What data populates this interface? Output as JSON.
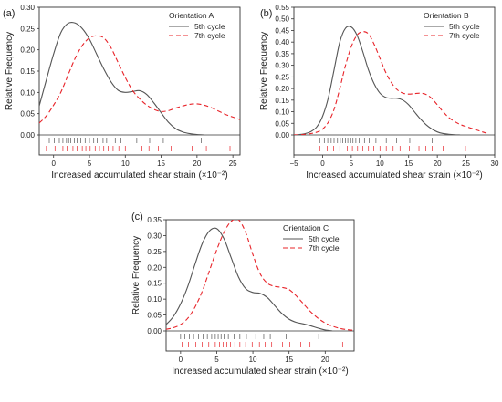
{
  "chart_data": [
    {
      "type": "line",
      "panel_label": "(a)",
      "legend_title": "Orientation A",
      "legend_placement": "top-right",
      "ylabel": "Relative Frequency",
      "xlabel": "Increased accumulated shear strain (×10⁻²)",
      "xlim": [
        -2,
        26
      ],
      "ylim": [
        0,
        0.3
      ],
      "x_ticks": [
        0,
        5,
        10,
        15,
        20,
        25
      ],
      "y_ticks": [
        0.0,
        0.05,
        0.1,
        0.15,
        0.2,
        0.25,
        0.3
      ],
      "x_tick_labels": [
        "0",
        "5",
        "10",
        "15",
        "20",
        "25"
      ],
      "y_tick_labels": [
        "0.00",
        "0.05",
        "0.10",
        "0.15",
        "0.20",
        "0.25",
        "0.30"
      ],
      "series": [
        {
          "name": "5th cycle",
          "color": "#555555",
          "dash": "solid",
          "x": [
            -2,
            -1,
            0,
            1,
            2,
            3,
            4,
            5,
            6,
            7,
            8,
            9,
            10,
            11,
            12,
            13,
            14,
            15,
            16,
            17,
            18,
            19,
            20,
            21
          ],
          "y": [
            0.068,
            0.13,
            0.19,
            0.24,
            0.262,
            0.263,
            0.25,
            0.225,
            0.19,
            0.155,
            0.125,
            0.105,
            0.1,
            0.102,
            0.104,
            0.095,
            0.075,
            0.052,
            0.03,
            0.015,
            0.007,
            0.003,
            0.001,
            0.0
          ]
        },
        {
          "name": "7th cycle",
          "color": "#e8242a",
          "dash": "dashed",
          "x": [
            -2,
            -1,
            0,
            1,
            2,
            3,
            4,
            5,
            6,
            7,
            8,
            9,
            10,
            11,
            12,
            13,
            14,
            15,
            16,
            17,
            18,
            19,
            20,
            21,
            22,
            23,
            24,
            25,
            26
          ],
          "y": [
            0.028,
            0.045,
            0.07,
            0.1,
            0.14,
            0.18,
            0.21,
            0.228,
            0.233,
            0.228,
            0.205,
            0.17,
            0.135,
            0.105,
            0.085,
            0.07,
            0.06,
            0.055,
            0.057,
            0.063,
            0.068,
            0.072,
            0.073,
            0.07,
            0.064,
            0.056,
            0.048,
            0.042,
            0.036
          ]
        }
      ],
      "rug": [
        {
          "series": "5th cycle",
          "values": [
            -0.6,
            0.1,
            0.8,
            1.3,
            1.8,
            2.1,
            2.4,
            2.9,
            3.3,
            3.8,
            4.4,
            5.0,
            5.6,
            6.1,
            6.9,
            7.4,
            8.6,
            9.4,
            11.6,
            12.2,
            13.4,
            15.3,
            20.6
          ]
        },
        {
          "series": "7th cycle",
          "values": [
            -1.0,
            0.2,
            1.3,
            1.9,
            2.7,
            3.3,
            4.0,
            4.5,
            5.1,
            5.8,
            6.4,
            7.0,
            7.6,
            8.3,
            9.1,
            10.0,
            10.8,
            12.3,
            13.3,
            14.6,
            16.4,
            19.3,
            21.3,
            24.6
          ]
        }
      ]
    },
    {
      "type": "line",
      "panel_label": "(b)",
      "legend_title": "Orientation B",
      "legend_placement": "top-right",
      "ylabel": "Relative Frequency",
      "xlabel": "Increased accumulated shear strain (×10⁻²)",
      "xlim": [
        -5,
        30
      ],
      "ylim": [
        0,
        0.55
      ],
      "x_ticks": [
        -5,
        0,
        5,
        10,
        15,
        20,
        25,
        30
      ],
      "y_ticks": [
        0.0,
        0.05,
        0.1,
        0.15,
        0.2,
        0.25,
        0.3,
        0.35,
        0.4,
        0.45,
        0.5,
        0.55
      ],
      "x_tick_labels": [
        "−5",
        "0",
        "5",
        "10",
        "15",
        "20",
        "25",
        "30"
      ],
      "y_tick_labels": [
        "0.00",
        "0.05",
        "0.10",
        "0.15",
        "0.20",
        "0.25",
        "0.30",
        "0.35",
        "0.40",
        "0.45",
        "0.50",
        "0.55"
      ],
      "series": [
        {
          "name": "5th cycle",
          "color": "#555555",
          "dash": "solid",
          "x": [
            -5,
            -4,
            -3,
            -2,
            -1,
            0,
            1,
            2,
            3,
            4,
            5,
            6,
            7,
            8,
            9,
            10,
            11,
            12,
            13,
            14,
            15,
            16,
            17,
            18,
            19,
            20,
            21,
            22,
            23,
            24
          ],
          "y": [
            0.0,
            0.002,
            0.006,
            0.015,
            0.035,
            0.08,
            0.16,
            0.28,
            0.4,
            0.46,
            0.465,
            0.43,
            0.36,
            0.28,
            0.22,
            0.18,
            0.162,
            0.158,
            0.158,
            0.15,
            0.13,
            0.1,
            0.07,
            0.045,
            0.026,
            0.013,
            0.006,
            0.003,
            0.001,
            0.0
          ]
        },
        {
          "name": "7th cycle",
          "color": "#e8242a",
          "dash": "dashed",
          "x": [
            -5,
            -4,
            -3,
            -2,
            -1,
            0,
            1,
            2,
            3,
            4,
            5,
            6,
            7,
            8,
            9,
            10,
            11,
            12,
            13,
            14,
            15,
            16,
            17,
            18,
            19,
            20,
            21,
            22,
            23,
            24,
            25,
            26,
            27,
            28,
            29
          ],
          "y": [
            0.0,
            0.001,
            0.003,
            0.006,
            0.012,
            0.025,
            0.055,
            0.11,
            0.2,
            0.3,
            0.38,
            0.43,
            0.445,
            0.435,
            0.39,
            0.33,
            0.27,
            0.225,
            0.195,
            0.18,
            0.176,
            0.178,
            0.18,
            0.175,
            0.158,
            0.13,
            0.1,
            0.075,
            0.058,
            0.045,
            0.036,
            0.028,
            0.02,
            0.012,
            0.004
          ]
        }
      ],
      "rug": [
        {
          "series": "5th cycle",
          "values": [
            -0.5,
            0.3,
            0.9,
            1.5,
            2.0,
            2.6,
            3.1,
            3.5,
            4.0,
            4.4,
            4.9,
            5.3,
            5.8,
            6.4,
            7.3,
            8.1,
            9.3,
            11.1,
            12.9,
            15.2,
            19.1
          ]
        },
        {
          "series": "7th cycle",
          "values": [
            -0.5,
            0.8,
            1.9,
            3.0,
            4.3,
            5.2,
            6.1,
            7.0,
            8.0,
            8.9,
            10.0,
            11.1,
            12.3,
            13.5,
            15.1,
            16.8,
            18.0,
            19.1,
            21.0,
            24.9
          ]
        }
      ]
    },
    {
      "type": "line",
      "panel_label": "(c)",
      "legend_title": "Orientation C",
      "legend_placement": "top-right",
      "ylabel": "Relative Frequency",
      "xlabel": "Increased accumulated shear strain (×10⁻²)",
      "xlim": [
        -2,
        24
      ],
      "ylim": [
        0,
        0.35
      ],
      "x_ticks": [
        0,
        5,
        10,
        15,
        20
      ],
      "y_ticks": [
        0.0,
        0.05,
        0.1,
        0.15,
        0.2,
        0.25,
        0.3,
        0.35
      ],
      "x_tick_labels": [
        "0",
        "5",
        "10",
        "15",
        "20"
      ],
      "y_tick_labels": [
        "0.00",
        "0.05",
        "0.10",
        "0.15",
        "0.20",
        "0.25",
        "0.30",
        "0.35"
      ],
      "series": [
        {
          "name": "5th cycle",
          "color": "#555555",
          "dash": "solid",
          "x": [
            -2,
            -1,
            0,
            1,
            2,
            3,
            4,
            5,
            6,
            7,
            8,
            9,
            10,
            11,
            12,
            13,
            14,
            15,
            16,
            17,
            18,
            19,
            20,
            21
          ],
          "y": [
            0.02,
            0.045,
            0.085,
            0.14,
            0.21,
            0.275,
            0.315,
            0.322,
            0.29,
            0.23,
            0.17,
            0.133,
            0.121,
            0.118,
            0.105,
            0.08,
            0.055,
            0.037,
            0.027,
            0.022,
            0.016,
            0.009,
            0.003,
            0.0
          ]
        },
        {
          "name": "7th cycle",
          "color": "#e8242a",
          "dash": "dashed",
          "x": [
            -2,
            -1,
            0,
            1,
            2,
            3,
            4,
            5,
            6,
            7,
            8,
            9,
            10,
            11,
            12,
            13,
            14,
            15,
            16,
            17,
            18,
            19,
            20,
            21,
            22,
            23,
            24
          ],
          "y": [
            0.005,
            0.01,
            0.02,
            0.04,
            0.075,
            0.125,
            0.19,
            0.255,
            0.31,
            0.345,
            0.35,
            0.31,
            0.24,
            0.18,
            0.15,
            0.14,
            0.137,
            0.13,
            0.11,
            0.085,
            0.06,
            0.04,
            0.025,
            0.015,
            0.008,
            0.004,
            0.002
          ]
        }
      ],
      "rug": [
        {
          "series": "5th cycle",
          "values": [
            0.0,
            0.6,
            1.2,
            1.8,
            2.5,
            3.1,
            3.7,
            4.3,
            4.8,
            5.2,
            5.6,
            6.0,
            6.6,
            7.4,
            8.2,
            9.1,
            10.4,
            11.5,
            12.4,
            14.6,
            19.1
          ]
        },
        {
          "series": "7th cycle",
          "values": [
            0.2,
            1.1,
            2.1,
            3.0,
            3.9,
            4.8,
            5.4,
            5.9,
            6.4,
            6.9,
            7.5,
            8.2,
            9.0,
            9.9,
            10.9,
            11.7,
            12.6,
            14.1,
            15.1,
            16.6,
            17.9,
            22.4
          ]
        }
      ]
    }
  ]
}
